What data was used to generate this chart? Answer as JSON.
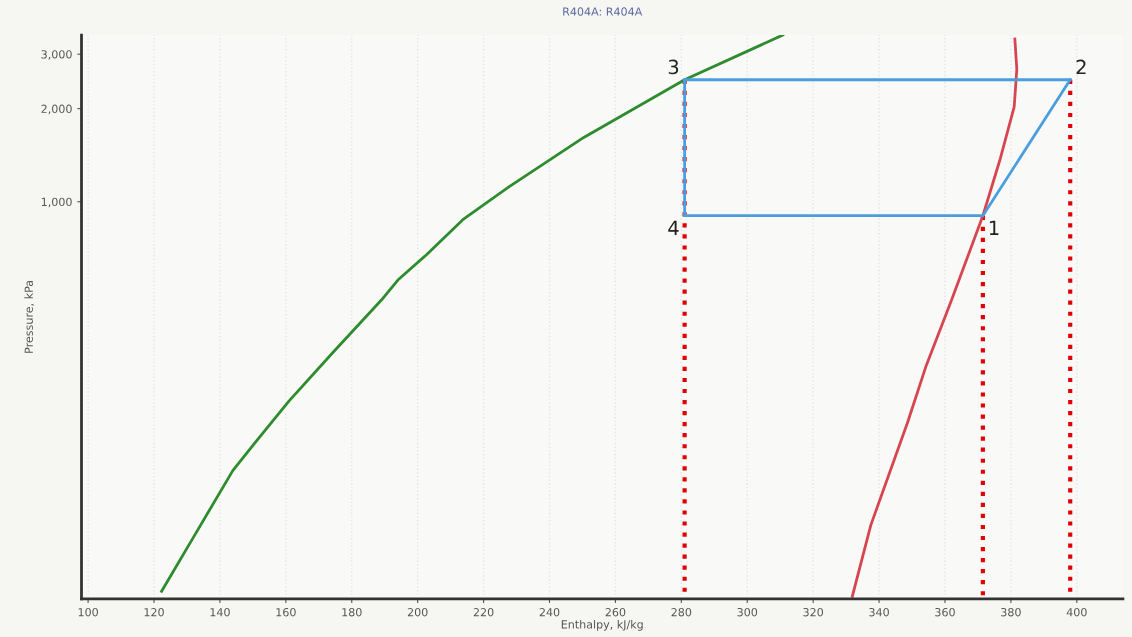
{
  "chart_data": {
    "type": "line",
    "title": "R404A: R404A",
    "xlabel": "Enthalpy, kJ/kg",
    "ylabel": "Pressure, kPa",
    "log": "y",
    "xlim": [
      98,
      414
    ],
    "ylim": [
      52,
      3460
    ],
    "xticks": [
      100,
      120,
      140,
      160,
      180,
      200,
      220,
      240,
      260,
      280,
      300,
      320,
      340,
      360,
      380,
      400
    ],
    "yticks": [
      {
        "value": 1000,
        "label": "1,000"
      },
      {
        "value": 2000,
        "label": "2,000"
      },
      {
        "value": 3000,
        "label": "3,000"
      }
    ],
    "grid": "x",
    "legend": false,
    "marker": "none",
    "series": [
      {
        "color": "#2e8b2e",
        "line_style": "solid",
        "x": [
          122.3,
          131.9,
          143.9,
          152.9,
          161,
          174,
          189,
          194,
          202.6,
          213.7,
          227.8,
          250.4,
          281,
          310.8
        ],
        "values": [
          55,
          82,
          135,
          178,
          227,
          323,
          481,
          558,
          673,
          875,
          1119,
          1614,
          2480,
          3460
        ]
      },
      {
        "color": "#d64550",
        "line_style": "solid",
        "x": [
          331.9,
          337.5,
          348.7,
          354.3,
          362,
          371.5,
          376.8,
          381,
          381.8,
          381.2
        ],
        "values": [
          53,
          90,
          194,
          295,
          481,
          901,
          1380,
          2027,
          2685,
          3357
        ]
      },
      {
        "color": "#4a9ee0",
        "line_style": "solid",
        "x": [
          281,
          371.5,
          398
        ],
        "values": [
          901,
          901,
          2480
        ]
      },
      {
        "color": "#4a9ee0",
        "line_style": "solid",
        "x": [
          281,
          398
        ],
        "values": [
          2480,
          2480
        ]
      },
      {
        "color": "#4a9ee0",
        "line_style": "solid",
        "x": [
          281,
          281
        ],
        "values": [
          2480,
          901
        ]
      },
      {
        "color": "#e00000",
        "line_style": "dotted",
        "x": [
          281,
          281
        ],
        "values": [
          2480,
          52
        ]
      },
      {
        "color": "#e00000",
        "line_style": "dotted",
        "x": [
          371.5,
          371.5
        ],
        "values": [
          901,
          52
        ]
      },
      {
        "color": "#e00000",
        "line_style": "dotted",
        "x": [
          398,
          398
        ],
        "values": [
          2480,
          52
        ]
      }
    ],
    "annotations": [
      {
        "text": "1",
        "x": 371.5,
        "y": 901
      },
      {
        "text": "2",
        "x": 398,
        "y": 2480
      },
      {
        "text": "3",
        "x": 281,
        "y": 2480
      },
      {
        "text": "4",
        "x": 281,
        "y": 901
      }
    ]
  }
}
